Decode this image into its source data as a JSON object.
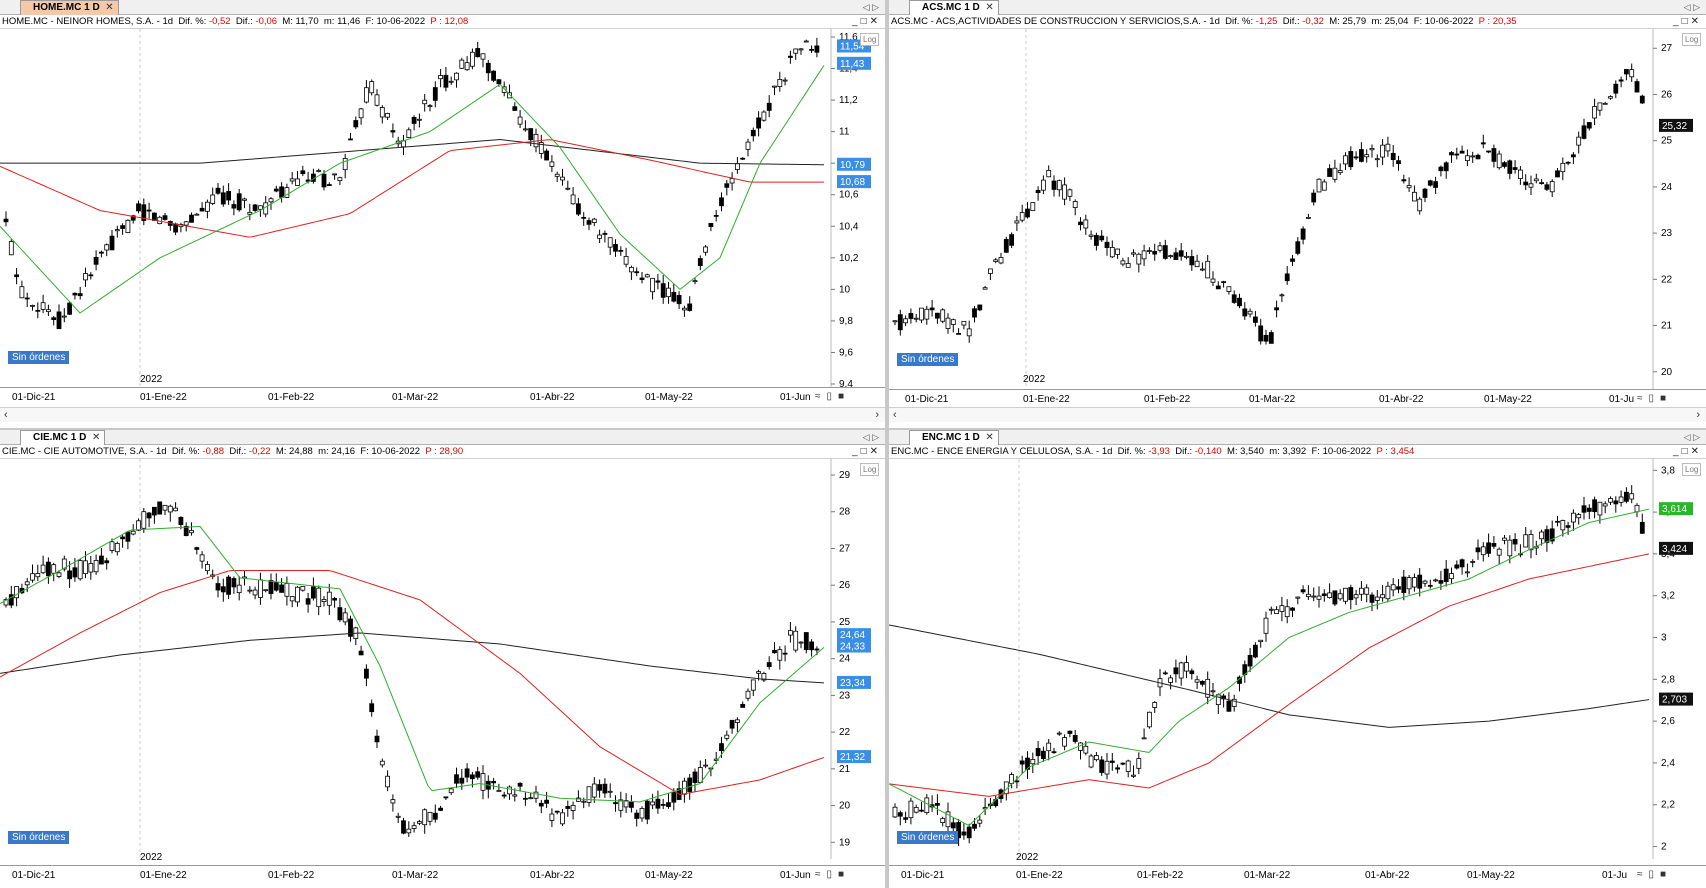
{
  "panes": [
    {
      "id": "home",
      "tabs": [
        {
          "label": "HOME.MC 1 D",
          "active": true
        }
      ],
      "info": {
        "name": "HOME.MC - NEINOR HOMES, S.A. - 1d",
        "pct_label": "Dif. %:",
        "pct": "-0,52",
        "dif_label": "Dif.:",
        "dif": "-0,06",
        "M": "M: 11,70",
        "m": "m: 11,46",
        "F": "F: 10-06-2022",
        "P": "P : 12,08"
      },
      "yticks": [
        "11,6",
        "11,4",
        "11,2",
        "11",
        "10,8",
        "10,6",
        "10,4",
        "10,2",
        "10",
        "9,8",
        "9,6",
        "9,4"
      ],
      "badges": [
        {
          "value": "11,54",
          "bg": "#3a8ee6"
        },
        {
          "value": "11,43",
          "bg": "#3a8ee6"
        },
        {
          "value": "10,79",
          "bg": "#3a8ee6"
        },
        {
          "value": "10,68",
          "bg": "#3a8ee6"
        }
      ],
      "xlabels": [
        "01-Dic-21",
        "01-Ene-22",
        "01-Feb-22",
        "01-Mar-22",
        "01-Abr-22",
        "01-May-22",
        "01-Jun"
      ],
      "year": "2022",
      "sin_ordenes": "Sin órdenes",
      "log": "Log"
    },
    {
      "id": "acs",
      "tabs": [
        {
          "label": "ACS.MC 1 D",
          "active": true
        }
      ],
      "info": {
        "name": "ACS.MC - ACS,ACTIVIDADES DE CONSTRUCCION Y SERVICIOS,S.A. - 1d",
        "pct_label": "Dif. %:",
        "pct": "-1,25",
        "dif_label": "Dif.:",
        "dif": "-0,32",
        "M": "M: 25,79",
        "m": "m: 25,04",
        "F": "F: 10-06-2022",
        "P": "P : 20,35"
      },
      "yticks": [
        "27",
        "26",
        "25",
        "24",
        "23",
        "22",
        "21",
        "20"
      ],
      "badges": [
        {
          "value": "25,32",
          "bg": "#111111"
        }
      ],
      "xlabels": [
        "01-Dic-21",
        "01-Ene-22",
        "01-Feb-22",
        "01-Mar-22",
        "01-Abr-22",
        "01-May-22",
        "01-Ju"
      ],
      "year": "2022",
      "sin_ordenes": "Sin órdenes",
      "log": "Log"
    },
    {
      "id": "cie",
      "tabs": [
        {
          "label": "CIE.MC 1 D",
          "active": true
        }
      ],
      "info": {
        "name": "CIE.MC - CIE AUTOMOTIVE, S.A. - 1d",
        "pct_label": "Dif. %:",
        "pct": "-0,88",
        "dif_label": "Dif.:",
        "dif": "-0,22",
        "M": "M: 24,88",
        "m": "m: 24,16",
        "F": "F: 10-06-2022",
        "P": "P : 28,90"
      },
      "yticks": [
        "29",
        "28",
        "27",
        "26",
        "25",
        "24",
        "23",
        "22",
        "21",
        "20",
        "19"
      ],
      "badges": [
        {
          "value": "24,64",
          "bg": "#3a8ee6"
        },
        {
          "value": "24,33",
          "bg": "#3a8ee6"
        },
        {
          "value": "23,34",
          "bg": "#3a8ee6"
        },
        {
          "value": "21,32",
          "bg": "#3a8ee6"
        }
      ],
      "xlabels": [
        "01-Dic-21",
        "01-Ene-22",
        "01-Feb-22",
        "01-Mar-22",
        "01-Abr-22",
        "01-May-22",
        "01-Jun"
      ],
      "year": "2022",
      "sin_ordenes": "Sin órdenes",
      "log": "Log"
    },
    {
      "id": "enc",
      "tabs": [
        {
          "label": "ENC.MC 1 D",
          "active": true
        }
      ],
      "info": {
        "name": "ENC.MC - ENCE ENERGIA Y CELULOSA, S.A. - 1d",
        "pct_label": "Dif. %:",
        "pct": "-3,93",
        "dif_label": "Dif.:",
        "dif": "-0,140",
        "M": "M: 3,540",
        "m": "m: 3,392",
        "F": "F: 10-06-2022",
        "P": "P : 3,454"
      },
      "yticks": [
        "3,8",
        "3,6",
        "3,4",
        "3,2",
        "3",
        "2,8",
        "2,6",
        "2,4",
        "2,2",
        "2"
      ],
      "badges": [
        {
          "value": "3,614",
          "bg": "#2bb52b"
        },
        {
          "value": "3,424",
          "bg": "#111111"
        },
        {
          "value": "2,703",
          "bg": "#111111"
        }
      ],
      "xlabels": [
        "01-Dic-21",
        "01-Ene-22",
        "01-Feb-22",
        "01-Mar-22",
        "01-Abr-22",
        "01-May-22",
        "01-Ju"
      ],
      "year": "2022",
      "sin_ordenes": "Sin órdenes",
      "log": "Log"
    }
  ],
  "colors": {
    "sma_fast": "#2fae2f",
    "sma_mid": "#e02020",
    "sma_slow": "#222222",
    "candle": "#000000",
    "accent": "#3a78c8"
  }
}
